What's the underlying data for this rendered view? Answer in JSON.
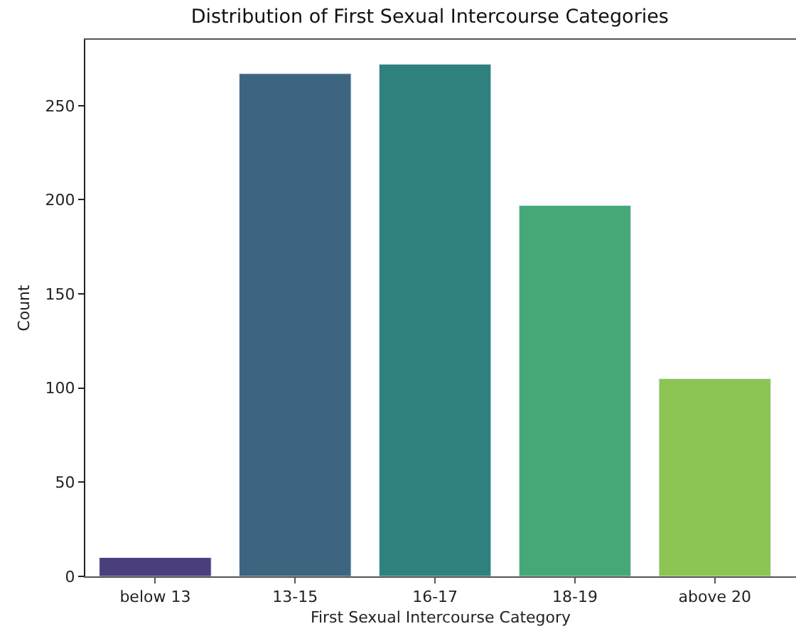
{
  "chart_data": {
    "type": "bar",
    "title": "Distribution of First Sexual Intercourse Categories",
    "xlabel": "First Sexual Intercourse Category",
    "ylabel": "Count",
    "categories": [
      "below 13",
      "13-15",
      "16-17",
      "18-19",
      "above 20"
    ],
    "values": [
      10,
      267,
      272,
      197,
      105
    ],
    "colors": [
      "#4a3f7c",
      "#3e6580",
      "#2e817e",
      "#46a877",
      "#8dc555"
    ],
    "ylim": [
      0,
      285
    ],
    "yticks": [
      0,
      50,
      100,
      150,
      200,
      250
    ]
  }
}
